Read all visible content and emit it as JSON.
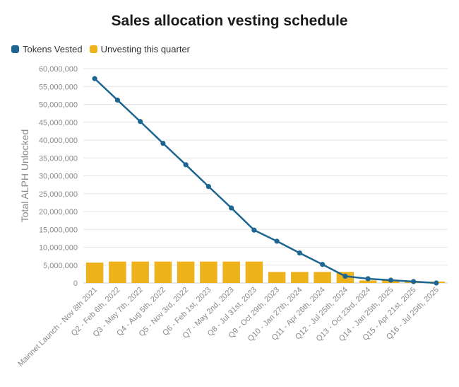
{
  "chart_data": {
    "type": "bar+line",
    "title": "Sales allocation vesting schedule",
    "ylabel": "Total ALPH Unlocked",
    "xlabel": "",
    "ylim": [
      0,
      60000000
    ],
    "yticks": [
      0,
      5000000,
      10000000,
      15000000,
      20000000,
      25000000,
      30000000,
      35000000,
      40000000,
      45000000,
      50000000,
      55000000,
      60000000
    ],
    "ytick_labels": [
      "0",
      "5,000,000",
      "10,000,000",
      "15,000,000",
      "20,000,000",
      "25,000,000",
      "30,000,000",
      "35,000,000",
      "40,000,000",
      "45,000,000",
      "50,000,000",
      "55,000,000",
      "60,000,000"
    ],
    "categories": [
      "Mainnet Launch - Nov 8th 2021",
      "Q2 - Feb 6th, 2022",
      "Q3 - May 7th, 2022",
      "Q4 - Aug 5th, 2022",
      "Q5 - Nov 3rd, 2022",
      "Q6 - Feb 1st, 2023",
      "Q7 - May 2nd, 2023",
      "Q8 - Jul 31st, 2023",
      "Q9 - Oct 29th, 2023",
      "Q10 - Jan 27th, 2024",
      "Q11 - Apr 26th, 2024",
      "Q12 - Jul 25th, 2024",
      "Q13 - Oct 23rd, 2024",
      "Q14 - Jan 25th, 2025",
      "Q15 - Apr 21st, 2025",
      "Q16 - Jul 25th, 2025"
    ],
    "series": [
      {
        "name": "Tokens Vested",
        "type": "line",
        "color": "#1e6591",
        "values": [
          57200000,
          51200000,
          45200000,
          39100000,
          33100000,
          27000000,
          21000000,
          14800000,
          11700000,
          8400000,
          5200000,
          1900000,
          1200000,
          800000,
          400000,
          0
        ]
      },
      {
        "name": "Unvesting this quarter",
        "type": "bar",
        "color": "#eeb21a",
        "values": [
          5700000,
          6000000,
          6000000,
          6000000,
          6000000,
          6000000,
          6000000,
          6000000,
          3100000,
          3100000,
          3100000,
          3100000,
          700000,
          700000,
          400000,
          400000
        ]
      }
    ],
    "legend_position": "top-left",
    "grid": true
  }
}
